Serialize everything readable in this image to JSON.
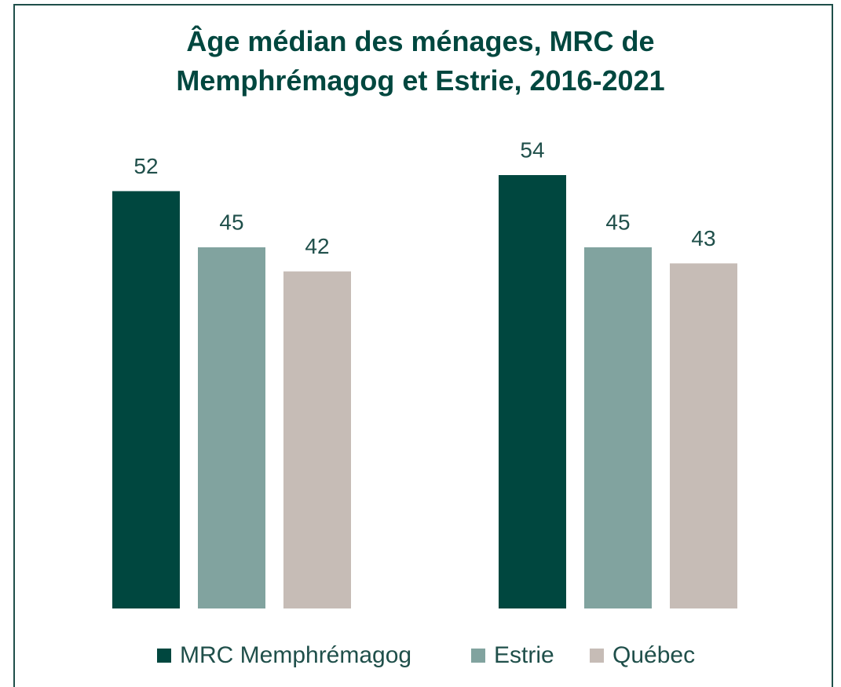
{
  "chart_data": {
    "type": "bar",
    "title": "Âge médian des ménages, MRC de Memphrémagog et Estrie, 2016-2021",
    "categories": [
      null,
      null
    ],
    "series": [
      {
        "name": "MRC Memphrémagog",
        "color": "#00473f",
        "values": [
          52,
          54
        ]
      },
      {
        "name": "Estrie",
        "color": "#81a39f",
        "values": [
          45,
          45
        ]
      },
      {
        "name": "Québec",
        "color": "#c6bcb6",
        "values": [
          42,
          43
        ]
      }
    ],
    "legend": "bottom"
  }
}
